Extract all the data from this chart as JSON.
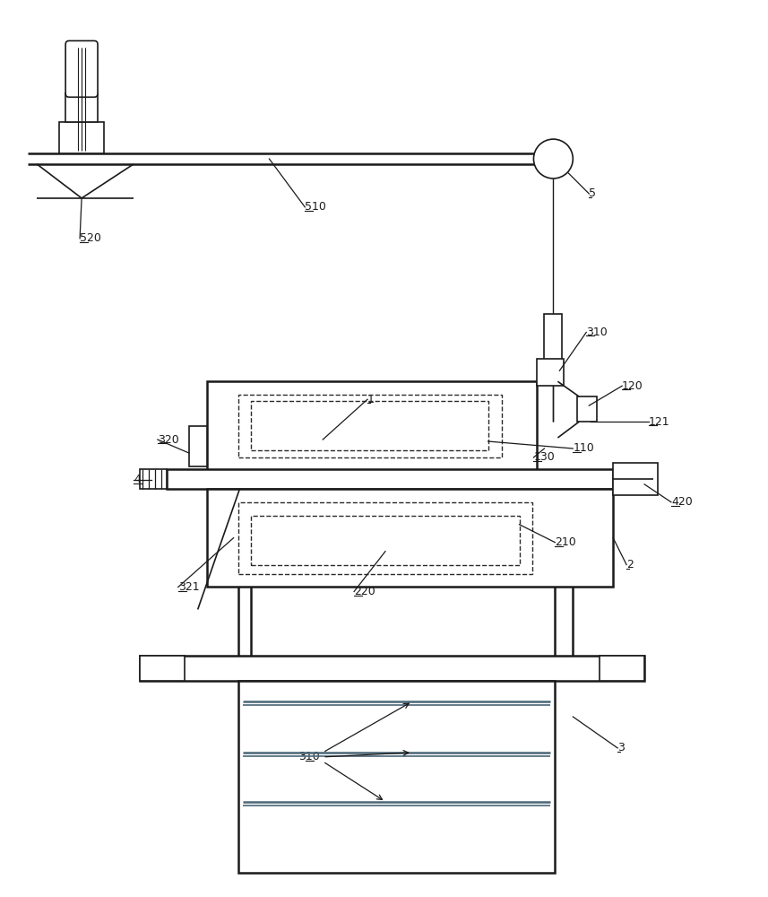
{
  "bg_color": "#ffffff",
  "lc": "#1a1a1a",
  "dc": "#2a2a2a",
  "plate_color": "#556677",
  "fig_width": 8.57,
  "fig_height": 10.0,
  "dpi": 100
}
